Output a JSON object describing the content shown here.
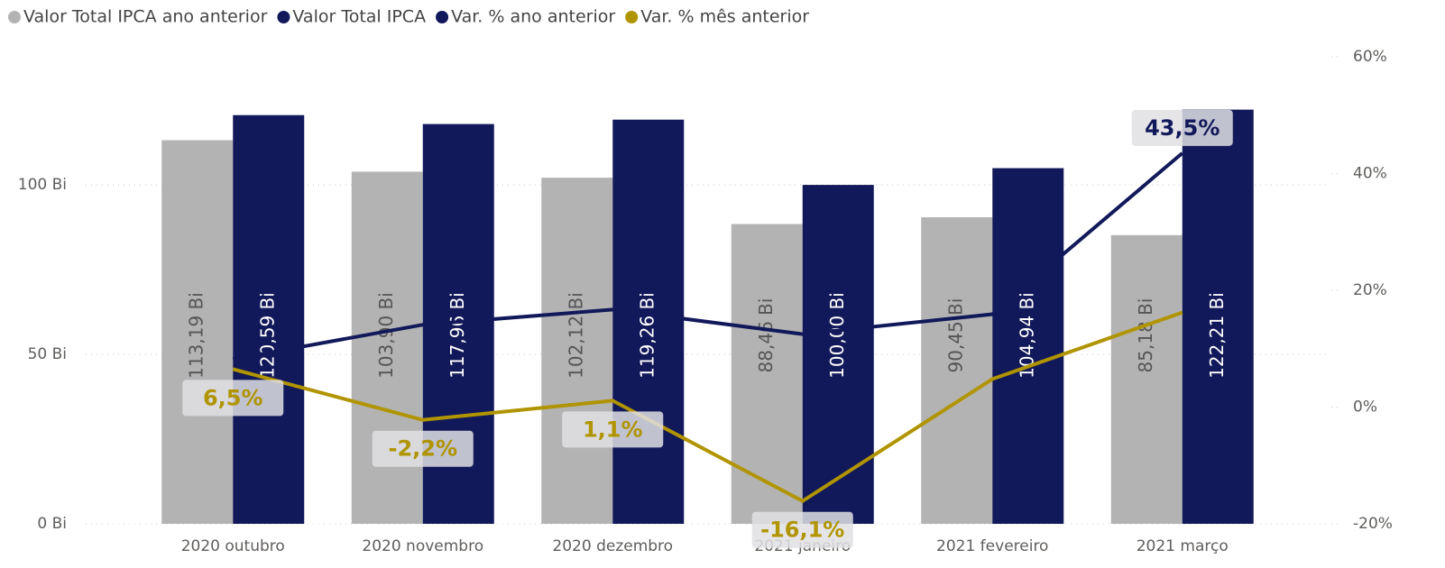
{
  "chart_data": {
    "type": "bar-line",
    "categories": [
      "2020 outubro",
      "2020 novembro",
      "2020 dezembro",
      "2021 janeiro",
      "2021 fevereiro",
      "2021 março"
    ],
    "series": [
      {
        "name": "Valor Total IPCA ano anterior",
        "color": "#b3b3b3",
        "type": "bar",
        "values": [
          113.19,
          103.9,
          102.12,
          88.46,
          90.45,
          85.18
        ],
        "value_labels": [
          "113,19 Bi",
          "103,90 Bi",
          "102,12 Bi",
          "88,46 Bi",
          "90,45 Bi",
          "85,18 Bi"
        ]
      },
      {
        "name": "Valor Total IPCA",
        "color": "#12195a",
        "type": "bar",
        "values": [
          120.59,
          117.96,
          119.26,
          100.0,
          104.94,
          122.21
        ],
        "value_labels": [
          "120,59 Bi",
          "117,96 Bi",
          "119,26 Bi",
          "100,00 Bi",
          "104,94 Bi",
          "122,21 Bi"
        ]
      },
      {
        "name": "Var. % ano anterior",
        "color": "#12195a",
        "type": "line",
        "axis": "y2",
        "values": [
          8.2,
          14.1,
          16.7,
          12.5,
          15.9,
          43.5
        ],
        "value_labels": [
          null,
          null,
          null,
          null,
          null,
          "43,5%"
        ]
      },
      {
        "name": "Var. % mês anterior",
        "color": "#b09400",
        "type": "line",
        "axis": "y2",
        "values": [
          6.5,
          -2.2,
          1.1,
          -16.1,
          4.8,
          16.2
        ],
        "value_labels": [
          "6,5%",
          "-2,2%",
          "1,1%",
          "-16,1%",
          null,
          null
        ]
      }
    ],
    "ylim": [
      0,
      137.8
    ],
    "yticks": [
      {
        "value": 0,
        "label": "0 Bi"
      },
      {
        "value": 50,
        "label": "50 Bi"
      },
      {
        "value": 100,
        "label": "100 Bi"
      }
    ],
    "y2lim": [
      -20,
      60
    ],
    "y2ticks": [
      {
        "value": -20,
        "label": "-20%"
      },
      {
        "value": 0,
        "label": "0%"
      },
      {
        "value": 20,
        "label": "20%"
      },
      {
        "value": 40,
        "label": "40%"
      },
      {
        "value": 60,
        "label": "60%"
      }
    ],
    "grid": true,
    "legend": "top-left"
  }
}
